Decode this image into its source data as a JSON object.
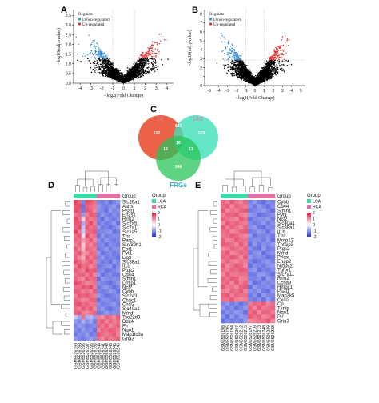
{
  "panels": {
    "A": {
      "label": "A",
      "ylabel": "- log10(adj.pvalue)",
      "xlabel": "- log2(Fold Change)",
      "legend_title": "Regulate",
      "legend_items": [
        {
          "label": "Down-regulated",
          "color": "#3a8fd6"
        },
        {
          "label": "Up-regulated",
          "color": "#e8302a"
        }
      ],
      "x_ticks": [
        "-4",
        "-3",
        "-2",
        "-1",
        "0",
        "1",
        "2",
        "3",
        "4"
      ],
      "y_ticks": [
        "0.0",
        "0.5",
        "1.0",
        "1.5",
        "2.0",
        "2.5",
        "3.0",
        "3.5"
      ],
      "xlim": [
        -4.6,
        4.6
      ],
      "ylim": [
        0,
        3.8
      ]
    },
    "B": {
      "label": "B",
      "ylabel": "-log10(adj.pvalue)",
      "xlabel": "- log2(Fold Change)",
      "legend_title": "Regulate",
      "legend_items": [
        {
          "label": "Down-regulated",
          "color": "#3a8fd6"
        },
        {
          "label": "Up-regulated",
          "color": "#e8302a"
        }
      ],
      "x_ticks": [
        "-5",
        "-4",
        "-3",
        "-2",
        "-1",
        "0",
        "1",
        "2",
        "3",
        "4",
        "5"
      ],
      "y_ticks": [
        "0",
        "1",
        "2",
        "3",
        "4",
        "5",
        "6",
        "7",
        "8"
      ],
      "xlim": [
        -5.5,
        5.5
      ],
      "ylim": [
        0,
        8.5
      ]
    },
    "C": {
      "label": "C",
      "set1": "2d",
      "set2": "14d",
      "set3": "FRGs",
      "only1": "512",
      "only2": "574",
      "only3": "348",
      "s12": "831",
      "s13": "18",
      "s23": "13",
      "s123": "16"
    },
    "D": {
      "label": "D",
      "group_label": "Group",
      "legend_title": "Group",
      "legend_items": [
        {
          "label": "LCA",
          "color": "#3fd6a8"
        },
        {
          "label": "RCA",
          "color": "#e071a8"
        }
      ],
      "colorbar_ticks": [
        "2",
        "1",
        "0",
        "-1",
        "-2"
      ],
      "genes": [
        "Slc16a1",
        "Asns",
        "Psat1",
        "Eif2s1",
        "Rrm2",
        "Slc7a5",
        "Slc7a11",
        "Slc1a5",
        "Tfrc",
        "Parp1",
        "Suv39h1",
        "Ept1",
        "Pvt1",
        "Lig3",
        "Slc38a1",
        "Il1b",
        "Ptgs2",
        "Cd44",
        "Stmn1",
        "Lrrfip1",
        "Ncf2",
        "Cybb",
        "Slc2a3",
        "Chac1",
        "Cxcl2",
        "Slc40a1",
        "Mmd",
        "Tsc22d3",
        "Ddit4",
        "Pir",
        "Nqo1",
        "Map1lc3a",
        "Gria3"
      ],
      "samples": [
        "GSM5526199",
        "GSM5526198",
        "GSM5526196",
        "GSM5526197",
        "GSM5526195",
        "GSM5526193",
        "GSM5526244",
        "GSM5526241",
        "GSM5526242",
        "GSM5526243",
        "GSM5526245",
        "GSM5526246"
      ],
      "groups": [
        "LCA",
        "LCA",
        "LCA",
        "LCA",
        "LCA",
        "LCA",
        "RCA",
        "RCA",
        "RCA",
        "RCA",
        "RCA",
        "RCA"
      ],
      "matrix": [
        [
          1.6,
          1.3,
          -1.2,
          1.5,
          1.4,
          1.2,
          -1.2,
          -1.3,
          -1.1,
          -1.4,
          -1.2,
          -1.0
        ],
        [
          1.4,
          1.5,
          -1.4,
          1.3,
          1.2,
          1.1,
          -1.0,
          -1.2,
          -1.3,
          -1.1,
          -1.0,
          -1.3
        ],
        [
          1.5,
          1.4,
          -1.3,
          1.4,
          1.3,
          1.0,
          -1.1,
          -1.2,
          -1.4,
          -1.0,
          -1.2,
          -1.1
        ],
        [
          1.2,
          1.3,
          -1.0,
          1.1,
          1.4,
          1.3,
          -1.3,
          -1.0,
          -1.2,
          -1.3,
          -1.1,
          -1.2
        ],
        [
          1.5,
          1.2,
          0.4,
          1.3,
          1.1,
          1.2,
          -1.2,
          -1.4,
          -1.0,
          -1.2,
          -1.3,
          -1.1
        ],
        [
          1.4,
          1.4,
          -0.8,
          1.2,
          1.5,
          1.1,
          -1.3,
          -1.1,
          -1.3,
          -1.2,
          -1.0,
          -1.4
        ],
        [
          1.3,
          1.5,
          -0.6,
          1.4,
          1.2,
          1.3,
          -1.0,
          -1.3,
          -1.2,
          -1.4,
          -1.2,
          -1.0
        ],
        [
          1.6,
          1.1,
          -0.5,
          1.2,
          1.3,
          1.4,
          -1.2,
          -1.2,
          -1.1,
          -1.0,
          -1.4,
          -1.3
        ],
        [
          1.2,
          1.4,
          0.3,
          1.5,
          1.1,
          1.2,
          -1.4,
          -1.0,
          -1.3,
          -1.2,
          -1.1,
          -1.2
        ],
        [
          1.3,
          1.2,
          0.8,
          1.1,
          1.4,
          1.0,
          -1.1,
          -1.3,
          -1.0,
          -1.2,
          -1.3,
          -1.2
        ],
        [
          1.1,
          1.3,
          0.5,
          1.2,
          1.0,
          1.3,
          -1.2,
          -1.1,
          -1.4,
          -1.1,
          -1.2,
          -1.3
        ],
        [
          1.4,
          1.1,
          0.6,
          1.3,
          1.2,
          1.1,
          -1.3,
          -1.2,
          -1.0,
          -1.3,
          -1.1,
          -1.1
        ],
        [
          1.2,
          1.4,
          0.9,
          1.0,
          1.3,
          1.2,
          -1.0,
          -1.4,
          -1.2,
          -1.1,
          -1.3,
          -1.2
        ],
        [
          1.3,
          1.0,
          0.7,
          1.4,
          1.1,
          1.3,
          -1.2,
          -1.0,
          -1.3,
          -1.2,
          -1.2,
          -1.4
        ],
        [
          1.5,
          1.3,
          1.0,
          1.2,
          1.4,
          1.1,
          -1.1,
          -1.3,
          -1.2,
          -1.4,
          -1.0,
          -1.2
        ],
        [
          1.1,
          1.5,
          1.2,
          1.3,
          1.0,
          1.2,
          -1.3,
          -1.2,
          -1.1,
          -1.0,
          -1.4,
          -1.1
        ],
        [
          1.4,
          1.2,
          1.1,
          1.5,
          1.3,
          1.4,
          -1.2,
          -1.1,
          -1.4,
          -1.3,
          -1.2,
          -1.0
        ],
        [
          1.2,
          1.3,
          1.3,
          1.1,
          1.4,
          1.0,
          -1.0,
          -1.4,
          -1.2,
          -1.1,
          -1.3,
          -1.3
        ],
        [
          1.3,
          1.1,
          1.0,
          1.4,
          1.2,
          1.3,
          -1.4,
          -1.0,
          -1.1,
          -1.2,
          -1.1,
          -1.2
        ],
        [
          1.5,
          1.4,
          1.2,
          1.0,
          1.1,
          1.2,
          -1.1,
          -1.2,
          -1.3,
          -1.4,
          -1.2,
          -1.0
        ],
        [
          1.2,
          1.2,
          1.4,
          1.3,
          1.5,
          1.1,
          -1.3,
          -1.1,
          -1.0,
          -1.2,
          -1.4,
          -1.2
        ],
        [
          1.4,
          1.3,
          1.1,
          1.2,
          1.0,
          1.4,
          -1.2,
          -1.3,
          -1.2,
          -1.0,
          -1.1,
          -1.4
        ],
        [
          1.1,
          1.4,
          1.3,
          1.4,
          1.2,
          1.1,
          -1.0,
          -1.2,
          -1.4,
          -1.3,
          -1.2,
          -1.1
        ],
        [
          1.3,
          1.2,
          1.0,
          1.1,
          1.3,
          1.3,
          -1.4,
          -1.1,
          -1.1,
          -1.2,
          -1.3,
          -1.2
        ],
        [
          1.4,
          1.5,
          1.2,
          1.3,
          1.1,
          1.2,
          -1.1,
          -1.3,
          -1.2,
          -1.1,
          -1.0,
          -1.3
        ],
        [
          1.2,
          1.1,
          1.4,
          1.2,
          1.4,
          1.0,
          -1.2,
          -1.0,
          -1.3,
          -1.4,
          -1.2,
          -1.1
        ],
        [
          1.3,
          1.4,
          1.1,
          1.0,
          1.2,
          1.3,
          -1.3,
          -1.2,
          -1.0,
          -1.2,
          -1.1,
          -1.2
        ],
        [
          -0.6,
          -0.9,
          1.2,
          -0.8,
          -0.7,
          -1.0,
          1.1,
          0.9,
          1.3,
          1.2,
          1.0,
          1.4
        ],
        [
          -1.0,
          -1.2,
          -0.8,
          -1.1,
          -0.9,
          -1.3,
          1.2,
          1.4,
          1.0,
          1.3,
          1.1,
          1.2
        ],
        [
          -1.2,
          -1.0,
          -1.1,
          -1.3,
          -1.2,
          -1.1,
          1.3,
          1.1,
          1.4,
          1.0,
          1.2,
          1.3
        ],
        [
          -1.1,
          -1.3,
          -1.0,
          -1.2,
          -1.1,
          -1.4,
          1.0,
          1.3,
          1.2,
          1.4,
          1.3,
          1.1
        ],
        [
          -1.3,
          -1.1,
          -1.2,
          -1.0,
          -1.3,
          -1.2,
          1.4,
          1.2,
          1.1,
          1.2,
          1.4,
          1.0
        ],
        [
          -1.0,
          -1.2,
          -1.3,
          -1.1,
          -1.0,
          -1.1,
          1.2,
          1.0,
          1.3,
          1.1,
          1.2,
          1.3
        ]
      ]
    },
    "E": {
      "label": "E",
      "group_label": "Group",
      "legend_title": "Group",
      "legend_items": [
        {
          "label": "LCA",
          "color": "#3fd6a8"
        },
        {
          "label": "RCA",
          "color": "#e071a8"
        }
      ],
      "colorbar_ticks": [
        "2",
        "1",
        "0",
        "-1",
        "-2"
      ],
      "genes": [
        "Cybb",
        "Cd44",
        "Stmn1",
        "Pvt1",
        "Ncf2",
        "Slc40a1",
        "Slc38a1",
        "Il1b",
        "Tfrc",
        "Mmp13",
        "Tnfaip3",
        "Ptgs2",
        "Mmd",
        "Prkca",
        "Enpp2",
        "Nt5dc2",
        "Tgfbr1",
        "Slc7a11",
        "Rrm2",
        "Ccna3",
        "Hmox1",
        "Psat1",
        "Map3k5",
        "Cxcl2",
        "Cp",
        "Txnip",
        "Nqo1",
        "Pir",
        "Gria3"
      ],
      "samples": [
        "GSM5526198",
        "GSM5526195",
        "GSM5526194",
        "GSM5526207",
        "GSM5526212",
        "GSM5526215",
        "GSM5526197",
        "GSM5526218",
        "GSM5526213",
        "GSM5526248",
        "GSM5526249",
        "GSM5526228"
      ],
      "groups": [
        "LCA",
        "LCA",
        "LCA",
        "LCA",
        "LCA",
        "LCA",
        "RCA",
        "RCA",
        "RCA",
        "RCA",
        "RCA",
        "RCA"
      ],
      "matrix": [
        [
          1.3,
          1.1,
          1.4,
          1.2,
          1.0,
          1.3,
          -1.2,
          -1.0,
          -1.3,
          -1.4,
          -1.1,
          -1.2
        ],
        [
          1.2,
          1.4,
          1.0,
          1.3,
          1.2,
          1.1,
          -1.1,
          -1.3,
          -1.0,
          -1.2,
          -1.4,
          -1.1
        ],
        [
          1.4,
          1.0,
          1.2,
          1.1,
          1.3,
          1.4,
          -1.3,
          -1.2,
          -1.1,
          -1.0,
          -1.2,
          -1.4
        ],
        [
          1.1,
          1.3,
          1.3,
          1.4,
          1.1,
          1.0,
          -1.0,
          -1.1,
          -1.4,
          -1.3,
          -1.2,
          -1.1
        ],
        [
          1.3,
          1.2,
          1.1,
          1.0,
          1.4,
          1.2,
          -1.4,
          -1.2,
          -1.1,
          -1.1,
          -1.0,
          -1.3
        ],
        [
          1.0,
          1.4,
          1.2,
          1.3,
          1.2,
          1.1,
          -1.2,
          -1.3,
          -1.2,
          -1.0,
          -1.3,
          -1.1
        ],
        [
          1.4,
          1.1,
          1.3,
          1.2,
          1.0,
          1.3,
          -1.1,
          -1.0,
          -1.3,
          -1.4,
          -1.1,
          -1.2
        ],
        [
          1.2,
          1.3,
          1.0,
          1.1,
          1.3,
          1.4,
          -1.3,
          -1.2,
          -1.0,
          -1.1,
          -1.4,
          -1.0
        ],
        [
          1.1,
          1.2,
          1.4,
          1.3,
          1.1,
          1.0,
          -1.0,
          -1.4,
          -1.2,
          -1.2,
          -1.1,
          -1.3
        ],
        [
          1.3,
          1.0,
          1.1,
          1.4,
          1.2,
          1.2,
          -1.2,
          -1.1,
          -1.1,
          -1.3,
          -1.0,
          -1.4
        ],
        [
          1.4,
          1.3,
          1.2,
          1.0,
          1.4,
          1.1,
          -1.4,
          -1.0,
          -1.3,
          -1.1,
          -1.2,
          -1.0
        ],
        [
          1.0,
          1.1,
          1.3,
          1.2,
          1.1,
          1.3,
          -1.1,
          -1.3,
          -1.4,
          -1.0,
          -1.3,
          -1.2
        ],
        [
          1.2,
          1.4,
          1.0,
          1.1,
          1.3,
          1.2,
          -1.3,
          -1.1,
          -1.0,
          -1.4,
          -1.2,
          -1.1
        ],
        [
          1.3,
          1.2,
          1.4,
          1.3,
          1.0,
          1.4,
          -1.0,
          -1.2,
          -1.1,
          -1.2,
          -1.4,
          -1.3
        ],
        [
          1.1,
          1.3,
          1.1,
          1.0,
          1.2,
          1.1,
          -1.2,
          -1.4,
          -1.3,
          -1.1,
          -1.0,
          -1.2
        ],
        [
          1.4,
          1.0,
          1.2,
          1.4,
          1.3,
          1.0,
          -1.4,
          -1.1,
          -1.2,
          -1.3,
          -1.1,
          -1.0
        ],
        [
          1.2,
          1.1,
          1.3,
          1.2,
          1.4,
          1.3,
          -1.1,
          -1.0,
          -1.4,
          -1.2,
          -1.3,
          -1.1
        ],
        [
          1.0,
          1.4,
          1.1,
          1.1,
          1.2,
          1.2,
          -1.3,
          -1.3,
          -1.0,
          -1.0,
          -1.2,
          -1.4
        ],
        [
          1.3,
          1.2,
          1.4,
          1.3,
          1.0,
          1.1,
          -1.2,
          -1.2,
          -1.1,
          -1.4,
          -1.0,
          -1.2
        ],
        [
          1.2,
          1.3,
          1.0,
          1.4,
          1.1,
          1.3,
          -1.0,
          -1.4,
          -1.3,
          -1.1,
          -1.2,
          -1.1
        ],
        [
          1.4,
          1.1,
          1.2,
          1.0,
          1.3,
          1.4,
          -1.4,
          -1.0,
          -1.2,
          -1.2,
          -1.1,
          -1.3
        ],
        [
          1.1,
          1.0,
          1.3,
          1.2,
          1.4,
          1.0,
          -1.1,
          -1.2,
          -1.0,
          -1.3,
          -1.4,
          -1.0
        ],
        [
          1.3,
          1.4,
          1.1,
          1.3,
          1.2,
          1.2,
          -1.3,
          -1.1,
          -1.4,
          -1.0,
          -1.2,
          -1.2
        ],
        [
          1.2,
          1.2,
          1.4,
          1.1,
          1.0,
          1.1,
          -1.2,
          -1.3,
          -1.1,
          -1.4,
          -1.0,
          -1.3
        ],
        [
          -1.2,
          -1.0,
          -1.3,
          -1.1,
          -1.4,
          -1.2,
          1.1,
          1.3,
          1.2,
          1.4,
          1.0,
          1.2
        ],
        [
          -1.0,
          -1.3,
          -1.1,
          -1.4,
          -1.2,
          -1.0,
          1.3,
          1.0,
          1.4,
          1.1,
          1.2,
          1.3
        ],
        [
          -1.3,
          -1.1,
          -1.2,
          -1.0,
          -1.1,
          -1.4,
          1.2,
          1.4,
          1.0,
          1.3,
          1.3,
          1.1
        ],
        [
          -1.1,
          -1.4,
          -1.0,
          -1.3,
          -1.0,
          -1.1,
          1.4,
          1.2,
          1.3,
          1.0,
          1.1,
          1.4
        ],
        [
          -1.4,
          -1.2,
          -1.3,
          -1.2,
          -1.3,
          -1.0,
          1.0,
          1.1,
          1.2,
          1.2,
          1.4,
          1.0
        ]
      ]
    }
  },
  "colors": {
    "down": "#3a8fd6",
    "up": "#e8302a",
    "ns": "#000000",
    "heat_low": "#2633d6",
    "heat_mid": "#ffffff",
    "heat_high": "#e0103a",
    "lca": "#3fd6a8",
    "rca": "#e071a8",
    "venn_2d": "#e84628",
    "venn_14d": "#3fe0b8",
    "venn_frgs": "#27c45a"
  },
  "chart_data": [
    {
      "type": "scatter",
      "panel": "A",
      "ylabel": "- log10(adj.pvalue)",
      "xlabel": "- log2(Fold Change)",
      "xlim": [
        -4.6,
        4.6
      ],
      "ylim": [
        0,
        3.8
      ],
      "series": [
        {
          "name": "Down-regulated",
          "color": "#3a8fd6"
        },
        {
          "name": "Up-regulated",
          "color": "#e8302a"
        }
      ]
    },
    {
      "type": "scatter",
      "panel": "B",
      "ylabel": "-log10(adj.pvalue)",
      "xlabel": "- log2(Fold Change)",
      "xlim": [
        -5.5,
        5.5
      ],
      "ylim": [
        0,
        8.5
      ],
      "series": [
        {
          "name": "Down-regulated",
          "color": "#3a8fd6"
        },
        {
          "name": "Up-regulated",
          "color": "#e8302a"
        }
      ]
    },
    {
      "type": "heatmap",
      "panel": "D",
      "value_range": [
        -2,
        2
      ]
    },
    {
      "type": "heatmap",
      "panel": "E",
      "value_range": [
        -2,
        2
      ]
    }
  ]
}
